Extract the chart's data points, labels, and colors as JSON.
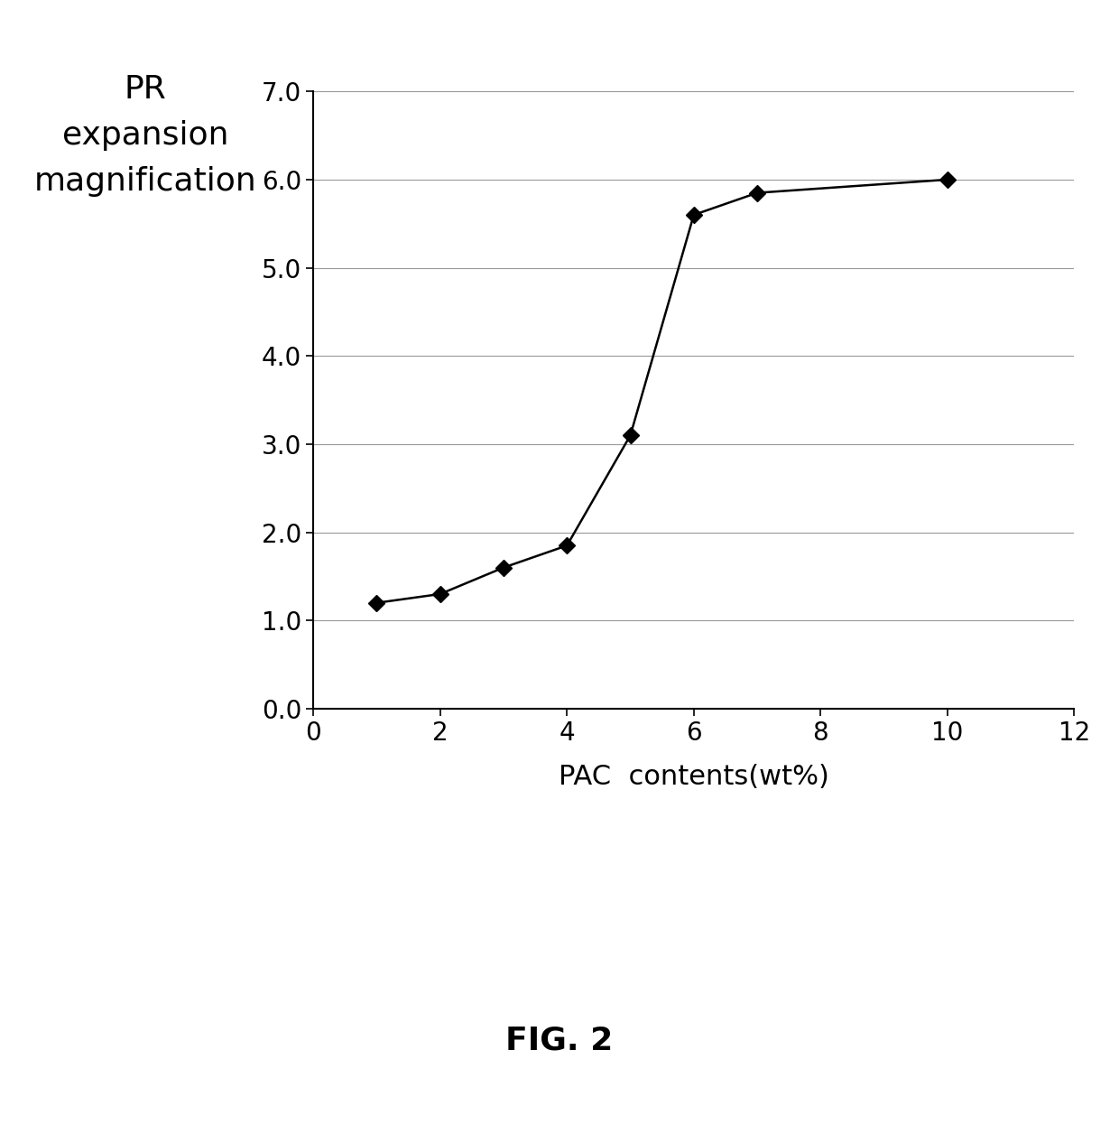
{
  "x": [
    1,
    2,
    3,
    4,
    5,
    6,
    7,
    10
  ],
  "y": [
    1.2,
    1.3,
    1.6,
    1.85,
    3.1,
    5.6,
    5.85,
    6.0
  ],
  "xlabel": "PAC  contents(wt%)",
  "ylabel_lines": [
    "PR",
    "expansion",
    "magnification"
  ],
  "xlim": [
    0,
    12
  ],
  "ylim": [
    0.0,
    7.0
  ],
  "xticks": [
    0,
    2,
    4,
    6,
    8,
    10,
    12
  ],
  "yticks": [
    0.0,
    1.0,
    2.0,
    3.0,
    4.0,
    5.0,
    6.0,
    7.0
  ],
  "line_color": "#000000",
  "marker_color": "#000000",
  "marker_style": "D",
  "marker_size": 9,
  "line_width": 1.8,
  "grid_color": "#999999",
  "background_color": "#ffffff",
  "fig_caption": "FIG. 2",
  "fig_caption_fontsize": 26,
  "xlabel_fontsize": 22,
  "ylabel_fontsize": 26,
  "tick_fontsize": 20,
  "caption_fontweight": "bold"
}
